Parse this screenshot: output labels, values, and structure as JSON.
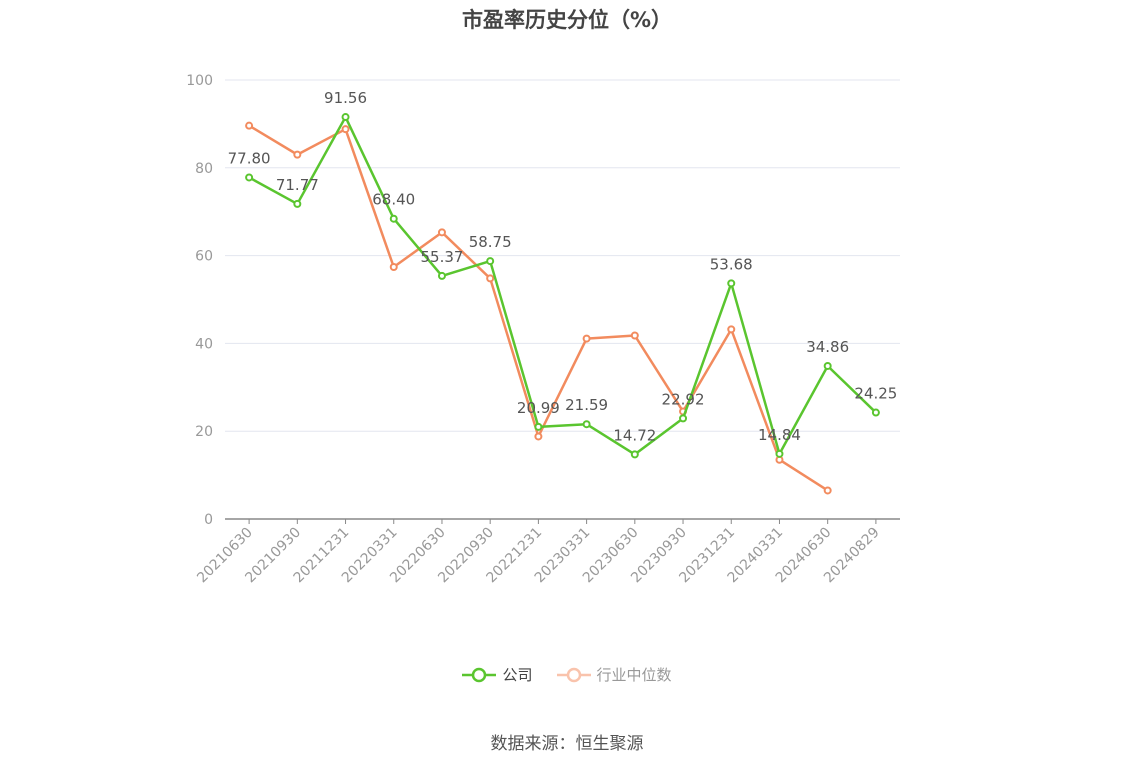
{
  "chart_data": {
    "type": "line",
    "title": "市盈率历史分位（%）",
    "categories": [
      "20210630",
      "20210930",
      "20211231",
      "20220331",
      "20220630",
      "20220930",
      "20221231",
      "20230331",
      "20230630",
      "20230930",
      "20231231",
      "20240331",
      "20240630",
      "20240829"
    ],
    "ylim": [
      0,
      100
    ],
    "yticks": [
      0,
      20,
      40,
      60,
      80,
      100
    ],
    "grid": true,
    "legend_position": "bottom",
    "series": [
      {
        "name": "公司",
        "color": "#5ac52f",
        "values": [
          77.8,
          71.77,
          91.56,
          68.4,
          55.37,
          58.75,
          20.99,
          21.59,
          14.72,
          22.92,
          53.68,
          14.84,
          34.86,
          24.25
        ],
        "labels": [
          "77.80",
          "71.77",
          "91.56",
          "68.40",
          "55.37",
          "58.75",
          "20.99",
          "21.59",
          "14.72",
          "22.92",
          "53.68",
          "14.84",
          "34.86",
          "24.25"
        ]
      },
      {
        "name": "行业中位数",
        "color": "#f28b5e",
        "values": [
          89.6,
          83.0,
          88.8,
          57.4,
          65.3,
          54.8,
          18.8,
          41.1,
          41.8,
          24.5,
          43.2,
          13.5,
          6.5,
          null
        ]
      }
    ]
  },
  "source": "数据来源：恒生聚源"
}
